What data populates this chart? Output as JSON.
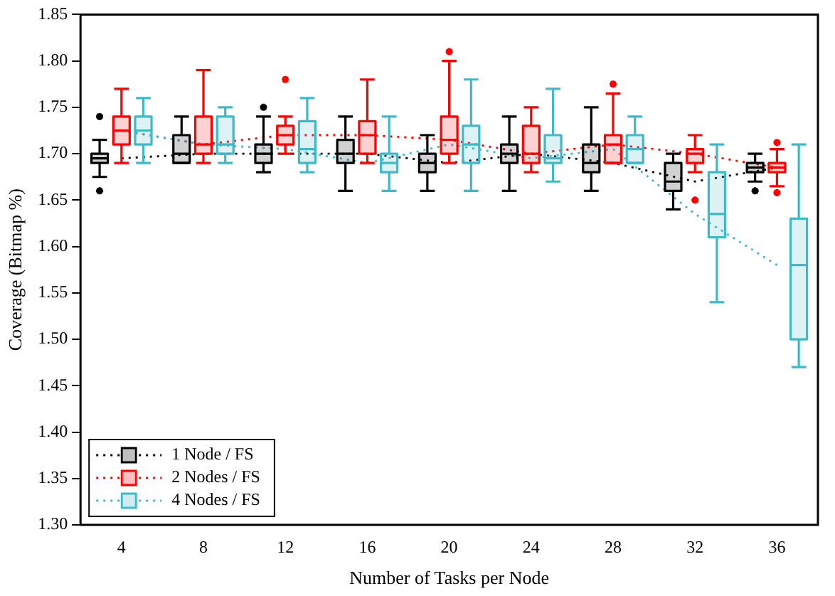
{
  "chart_data": {
    "type": "box",
    "xlabel": "Number of Tasks per Node",
    "ylabel": "Coverage (Bitmap %)",
    "categories": [
      "4",
      "8",
      "12",
      "16",
      "20",
      "24",
      "28",
      "32",
      "36"
    ],
    "ylim": [
      1.3,
      1.85
    ],
    "yticks": [
      {
        "value": 1.3,
        "label": "1.30"
      },
      {
        "value": 1.35,
        "label": "1.35"
      },
      {
        "value": 1.4,
        "label": "1.40"
      },
      {
        "value": 1.45,
        "label": "1.45"
      },
      {
        "value": 1.5,
        "label": "1.50"
      },
      {
        "value": 1.55,
        "label": "1.55"
      },
      {
        "value": 1.6,
        "label": "1.60"
      },
      {
        "value": 1.65,
        "label": "1.65"
      },
      {
        "value": 1.7,
        "label": "1.70"
      },
      {
        "value": 1.75,
        "label": "1.75"
      },
      {
        "value": 1.8,
        "label": "1.80"
      },
      {
        "value": 1.85,
        "label": "1.85"
      }
    ],
    "grid": false,
    "legend": "bottom left",
    "series": [
      {
        "name": "1 Node / FS",
        "color": "#000000",
        "boxes": [
          {
            "low": 1.675,
            "q1": 1.69,
            "median": 1.695,
            "q3": 1.7,
            "high": 1.715,
            "outliers": [
              1.74,
              1.66
            ]
          },
          {
            "low": 1.69,
            "q1": 1.69,
            "median": 1.7,
            "q3": 1.72,
            "high": 1.74
          },
          {
            "low": 1.68,
            "q1": 1.69,
            "median": 1.7,
            "q3": 1.71,
            "high": 1.74,
            "outliers": [
              1.75
            ]
          },
          {
            "low": 1.66,
            "q1": 1.69,
            "median": 1.7,
            "q3": 1.715,
            "high": 1.74
          },
          {
            "low": 1.66,
            "q1": 1.68,
            "median": 1.69,
            "q3": 1.7,
            "high": 1.72
          },
          {
            "low": 1.66,
            "q1": 1.69,
            "median": 1.7,
            "q3": 1.71,
            "high": 1.74
          },
          {
            "low": 1.66,
            "q1": 1.68,
            "median": 1.69,
            "q3": 1.71,
            "high": 1.75
          },
          {
            "low": 1.64,
            "q1": 1.66,
            "median": 1.67,
            "q3": 1.69,
            "high": 1.7
          },
          {
            "low": 1.67,
            "q1": 1.68,
            "median": 1.685,
            "q3": 1.69,
            "high": 1.7,
            "outliers": [
              1.66
            ]
          }
        ]
      },
      {
        "name": "2 Nodes / FS",
        "color": "#ff0000",
        "boxes": [
          {
            "low": 1.69,
            "q1": 1.71,
            "median": 1.725,
            "q3": 1.74,
            "high": 1.77
          },
          {
            "low": 1.69,
            "q1": 1.7,
            "median": 1.71,
            "q3": 1.74,
            "high": 1.79
          },
          {
            "low": 1.7,
            "q1": 1.71,
            "median": 1.72,
            "q3": 1.73,
            "high": 1.74,
            "outliers": [
              1.78
            ]
          },
          {
            "low": 1.69,
            "q1": 1.7,
            "median": 1.72,
            "q3": 1.735,
            "high": 1.78
          },
          {
            "low": 1.69,
            "q1": 1.7,
            "median": 1.715,
            "q3": 1.74,
            "high": 1.8,
            "outliers": [
              1.81
            ]
          },
          {
            "low": 1.68,
            "q1": 1.69,
            "median": 1.7,
            "q3": 1.73,
            "high": 1.75
          },
          {
            "low": 1.69,
            "q1": 1.69,
            "median": 1.71,
            "q3": 1.72,
            "high": 1.765,
            "outliers": [
              1.775
            ]
          },
          {
            "low": 1.68,
            "q1": 1.69,
            "median": 1.7,
            "q3": 1.705,
            "high": 1.72,
            "outliers": [
              1.65
            ]
          },
          {
            "low": 1.665,
            "q1": 1.68,
            "median": 1.685,
            "q3": 1.69,
            "high": 1.705,
            "outliers": [
              1.712,
              1.658
            ]
          }
        ]
      },
      {
        "name": "4 Nodes / FS",
        "color": "#3fb8c8",
        "boxes": [
          {
            "low": 1.69,
            "q1": 1.71,
            "median": 1.725,
            "q3": 1.74,
            "high": 1.76
          },
          {
            "low": 1.69,
            "q1": 1.7,
            "median": 1.71,
            "q3": 1.74,
            "high": 1.75
          },
          {
            "low": 1.68,
            "q1": 1.69,
            "median": 1.705,
            "q3": 1.735,
            "high": 1.76
          },
          {
            "low": 1.66,
            "q1": 1.68,
            "median": 1.69,
            "q3": 1.7,
            "high": 1.74
          },
          {
            "low": 1.66,
            "q1": 1.69,
            "median": 1.71,
            "q3": 1.73,
            "high": 1.78
          },
          {
            "low": 1.67,
            "q1": 1.69,
            "median": 1.695,
            "q3": 1.72,
            "high": 1.77
          },
          {
            "low": 1.69,
            "q1": 1.69,
            "median": 1.705,
            "q3": 1.72,
            "high": 1.74
          },
          {
            "low": 1.54,
            "q1": 1.61,
            "median": 1.635,
            "q3": 1.68,
            "high": 1.71
          },
          {
            "low": 1.47,
            "q1": 1.5,
            "median": 1.58,
            "q3": 1.63,
            "high": 1.71
          }
        ]
      },
      {
        "type": "line",
        "color": "#000000",
        "line_style": "dotted",
        "values": [
          1.695,
          1.7,
          1.7,
          1.7,
          1.69,
          1.7,
          1.69,
          1.67,
          1.685
        ]
      },
      {
        "type": "line",
        "color": "#ff0000",
        "line_style": "dotted",
        "values": [
          1.725,
          1.71,
          1.72,
          1.72,
          1.715,
          1.7,
          1.71,
          1.7,
          1.685
        ]
      },
      {
        "type": "line",
        "color": "#3fb8c8",
        "line_style": "dotted",
        "values": [
          1.725,
          1.71,
          1.705,
          1.69,
          1.71,
          1.695,
          1.705,
          1.635,
          1.58
        ]
      }
    ]
  }
}
